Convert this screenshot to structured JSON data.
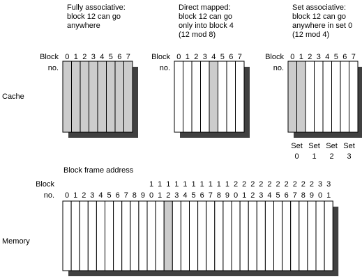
{
  "cache": {
    "row_label": "Cache",
    "block_label_line1": "Block",
    "block_label_line2": "no.",
    "block_numbers": [
      "0",
      "1",
      "2",
      "3",
      "4",
      "5",
      "6",
      "7"
    ],
    "panels": [
      {
        "caption": [
          "Fully associative:",
          "block 12 can go",
          "anywhere"
        ],
        "highlighted_blocks": [
          0,
          1,
          2,
          3,
          4,
          5,
          6,
          7
        ]
      },
      {
        "caption": [
          "Direct mapped:",
          "block 12 can go",
          "only into block 4",
          "(12 mod 8)"
        ],
        "highlighted_blocks": [
          4
        ]
      },
      {
        "caption": [
          "Set associative:",
          "block 12 can go",
          "anywhere in set 0",
          "(12 mod 4)"
        ],
        "highlighted_blocks": [
          0,
          1
        ]
      }
    ],
    "set_labels": [
      {
        "top": "Set",
        "bottom": "0"
      },
      {
        "top": "Set",
        "bottom": "1"
      },
      {
        "top": "Set",
        "bottom": "2"
      },
      {
        "top": "Set",
        "bottom": "3"
      }
    ]
  },
  "memory": {
    "row_label": "Memory",
    "title": "Block frame address",
    "block_label_line1": "Block",
    "block_label_line2": "no.",
    "tens_digits": [
      "",
      "",
      "",
      "",
      "",
      "",
      "",
      "",
      "",
      "",
      "1",
      "1",
      "1",
      "1",
      "1",
      "1",
      "1",
      "1",
      "1",
      "1",
      "2",
      "2",
      "2",
      "2",
      "2",
      "2",
      "2",
      "2",
      "2",
      "2",
      "3",
      "3"
    ],
    "ones_digits": [
      "0",
      "1",
      "2",
      "3",
      "4",
      "5",
      "6",
      "7",
      "8",
      "9",
      "0",
      "1",
      "2",
      "3",
      "4",
      "5",
      "6",
      "7",
      "8",
      "9",
      "0",
      "1",
      "2",
      "3",
      "4",
      "5",
      "6",
      "7",
      "8",
      "9",
      "0",
      "1"
    ],
    "highlighted_block": 12
  },
  "colors": {
    "highlight": "#cccccc",
    "shadow": "#404040",
    "line": "#000000",
    "background": "#ffffff"
  }
}
